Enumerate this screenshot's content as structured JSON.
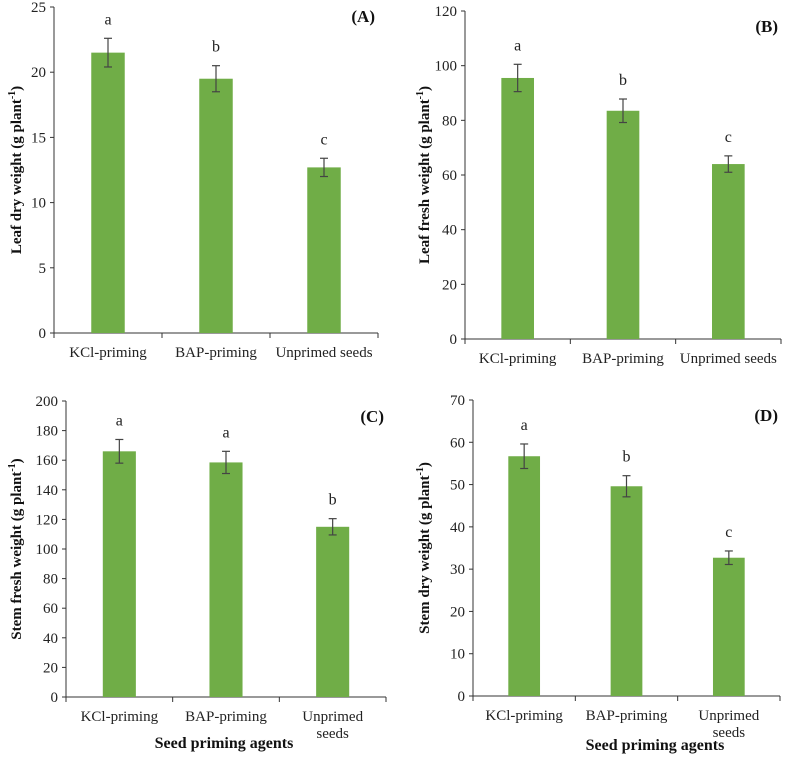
{
  "chart_data": [
    {
      "type": "bar",
      "panel_label": "(A)",
      "categories": [
        "KCl-priming",
        "BAP-priming",
        "Unprimed seeds"
      ],
      "values": [
        21.5,
        19.5,
        12.7
      ],
      "errors": [
        1.1,
        1.0,
        0.7
      ],
      "significance": [
        "a",
        "b",
        "c"
      ],
      "ylabel": "Leaf dry weight (g plant⁻¹)",
      "xlabel": "",
      "ylim": [
        0,
        25
      ],
      "yticks": [
        0,
        5,
        10,
        15,
        20,
        25
      ],
      "bar_color": "#70AD47"
    },
    {
      "type": "bar",
      "panel_label": "(B)",
      "categories": [
        "KCl-priming",
        "BAP-priming",
        "Unprimed seeds"
      ],
      "values": [
        95.5,
        83.5,
        64
      ],
      "errors": [
        5,
        4.3,
        3
      ],
      "significance": [
        "a",
        "b",
        "c"
      ],
      "ylabel": "Leaf fresh weight (g plant⁻¹)",
      "xlabel": "",
      "ylim": [
        0,
        120
      ],
      "yticks": [
        0,
        20,
        40,
        60,
        80,
        100,
        120
      ],
      "bar_color": "#70AD47"
    },
    {
      "type": "bar",
      "panel_label": "(C)",
      "categories": [
        "KCl-priming",
        "BAP-priming",
        "Unprimed seeds"
      ],
      "values": [
        166,
        158.5,
        115
      ],
      "errors": [
        8,
        7.5,
        5.5
      ],
      "significance": [
        "a",
        "a",
        "b"
      ],
      "ylabel": "Stem fresh weight (g plant⁻¹)",
      "xlabel": "Seed priming agents",
      "ylim": [
        0,
        200
      ],
      "yticks": [
        0,
        20,
        40,
        60,
        80,
        100,
        120,
        140,
        160,
        180,
        200
      ],
      "bar_color": "#70AD47"
    },
    {
      "type": "bar",
      "panel_label": "(D)",
      "categories": [
        "KCl-priming",
        "BAP-priming",
        "Unprimed seeds"
      ],
      "values": [
        56.7,
        49.6,
        32.7
      ],
      "errors": [
        2.9,
        2.5,
        1.6
      ],
      "significance": [
        "a",
        "b",
        "c"
      ],
      "ylabel": "Stem dry weight (g plant⁻¹)",
      "xlabel": "Seed priming agents",
      "ylim": [
        0,
        70
      ],
      "yticks": [
        0,
        10,
        20,
        30,
        40,
        50,
        60,
        70
      ],
      "bar_color": "#70AD47"
    }
  ]
}
